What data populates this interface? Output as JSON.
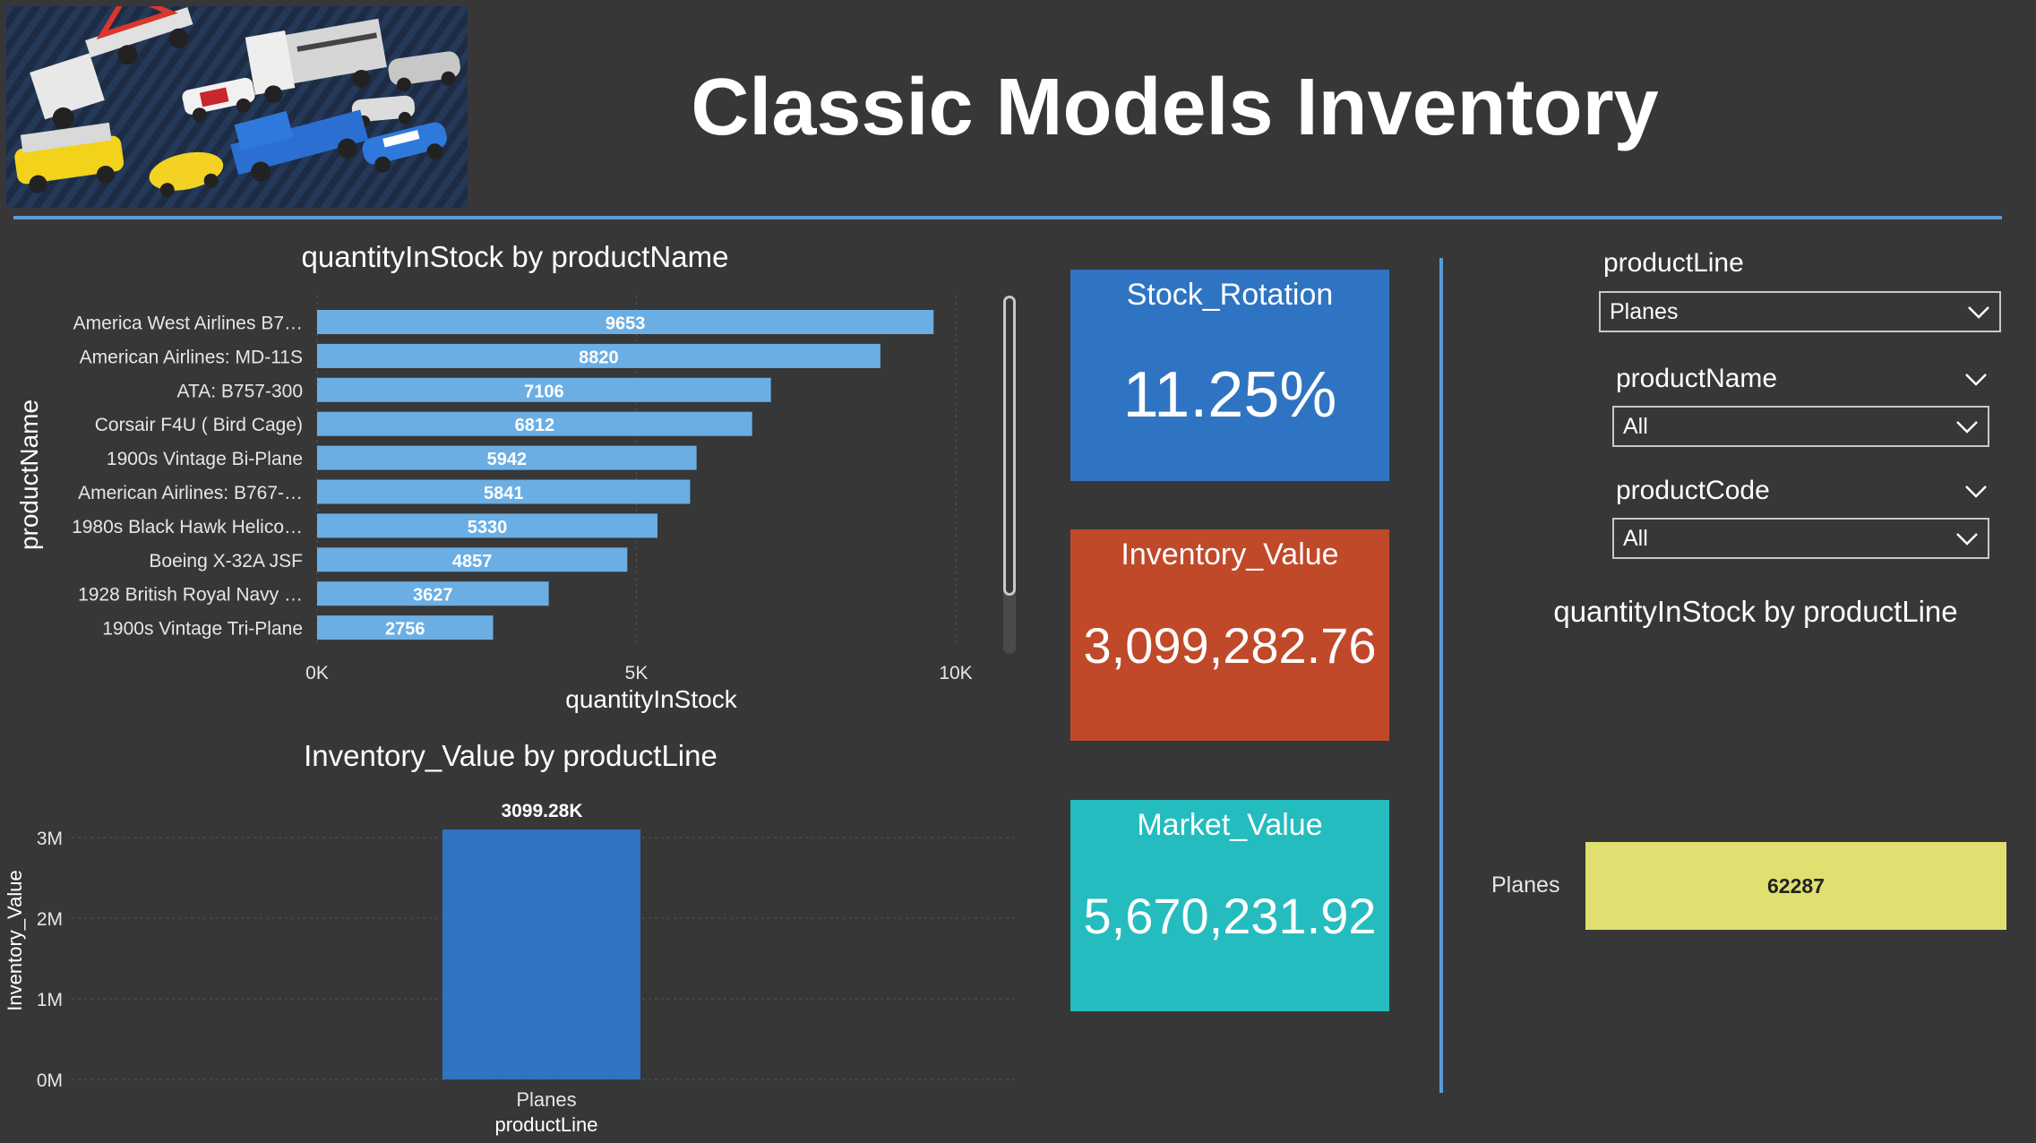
{
  "header": {
    "title": "Classic Models Inventory",
    "hero_image": "die-cast-model-cars-photo"
  },
  "bar_chart": {
    "title": "quantityInStock by productName",
    "ylabel": "productName",
    "xlabel": "quantityInStock",
    "tick_labels": [
      "0K",
      "5K",
      "10K"
    ]
  },
  "column_chart": {
    "title": "Inventory_Value by productLine",
    "ylabel": "Inventory_Value",
    "xlabel": "productLine",
    "tick_labels": [
      "3M",
      "2M",
      "1M",
      "0M"
    ],
    "category_label": "Planes",
    "data_label": "3099.28K"
  },
  "kpis": {
    "stock_rotation": {
      "label": "Stock_Rotation",
      "value": "11.25%",
      "color": "#2f74c2"
    },
    "inventory_value": {
      "label": "Inventory_Value",
      "value": "3,099,282.76",
      "color": "#c0492a"
    },
    "market_value": {
      "label": "Market_Value",
      "value": "5,670,231.92",
      "color": "#25bcbf"
    }
  },
  "slicers": {
    "product_line": {
      "label": "productLine",
      "selected": "Planes"
    },
    "product_name": {
      "label": "productName",
      "selected": "All"
    },
    "product_code": {
      "label": "productCode",
      "selected": "All"
    }
  },
  "line_chart": {
    "title": "quantityInStock by productLine",
    "category_label": "Planes",
    "data_label": "62287"
  },
  "colors": {
    "background": "#373737",
    "accent": "#5b9bd5",
    "bar": "#6aaee4",
    "column": "#2f74c2",
    "line_bar": "#dfe070"
  },
  "chart_data": [
    {
      "type": "bar",
      "title": "quantityInStock by productName",
      "xlabel": "quantityInStock",
      "ylabel": "productName",
      "categories": [
        "America West Airlines B7…",
        "American Airlines: MD-11S",
        "ATA: B757-300",
        "Corsair F4U ( Bird Cage)",
        "1900s Vintage Bi-Plane",
        "American Airlines: B767-…",
        "1980s Black Hawk Helico…",
        "Boeing X-32A JSF",
        "1928 British Royal Navy …",
        "1900s Vintage Tri-Plane"
      ],
      "values": [
        9653,
        8820,
        7106,
        6812,
        5942,
        5841,
        5330,
        4857,
        3627,
        2756
      ],
      "xlim": [
        0,
        10000
      ],
      "grid": true
    },
    {
      "type": "bar",
      "title": "Inventory_Value by productLine",
      "xlabel": "productLine",
      "ylabel": "Inventory_Value",
      "categories": [
        "Planes"
      ],
      "values": [
        3099280
      ],
      "ylim": [
        0,
        3000000
      ],
      "grid": true
    },
    {
      "type": "bar",
      "title": "quantityInStock by productLine",
      "categories": [
        "Planes"
      ],
      "values": [
        62287
      ]
    }
  ]
}
